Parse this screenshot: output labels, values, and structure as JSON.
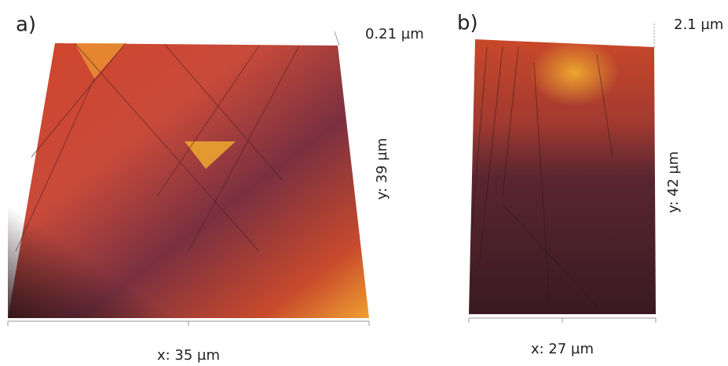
{
  "panels": [
    {
      "label": "a)",
      "z_label": "0.21 µm",
      "y_label": "y: 39 µm",
      "x_label": "x: 35 µm"
    },
    {
      "label": "b)",
      "z_label": "2.1 µm",
      "y_label": "y: 42 µm",
      "x_label": "x: 27 µm"
    }
  ]
}
